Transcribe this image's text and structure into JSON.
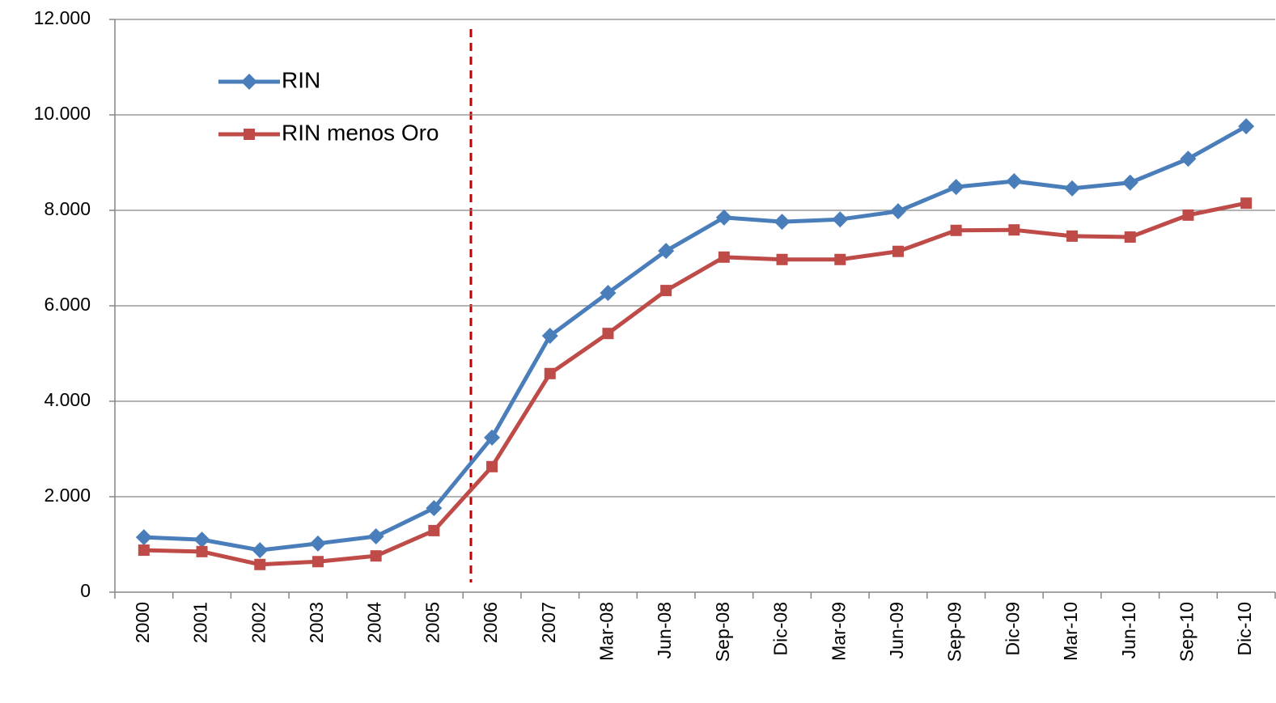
{
  "chart_data": {
    "type": "line",
    "categories": [
      "2000",
      "2001",
      "2002",
      "2003",
      "2004",
      "2005",
      "2006",
      "2007",
      "Mar-08",
      "Jun-08",
      "Sep-08",
      "Dic-08",
      "Mar-09",
      "Jun-09",
      "Sep-09",
      "Dic-09",
      "Mar-10",
      "Jun-10",
      "Sep-10",
      "Dic-10"
    ],
    "series": [
      {
        "name": "RIN",
        "color": "#4a7ebb",
        "marker": "diamond",
        "values": [
          1150,
          1100,
          880,
          1020,
          1170,
          1760,
          3240,
          5370,
          6270,
          7150,
          7850,
          7760,
          7810,
          7980,
          8490,
          8610,
          8460,
          8580,
          9080,
          9760
        ]
      },
      {
        "name": "RIN menos Oro",
        "color": "#be4b48",
        "marker": "square",
        "values": [
          880,
          850,
          580,
          640,
          760,
          1290,
          2630,
          4580,
          5420,
          6320,
          7020,
          6970,
          6970,
          7140,
          7580,
          7590,
          7460,
          7440,
          7900,
          8150
        ]
      }
    ],
    "ylim": [
      0,
      12000
    ],
    "yticks": [
      0,
      {
        "value": 2000,
        "label": "2.000"
      },
      {
        "value": 4000,
        "label": "4.000"
      },
      {
        "value": 6000,
        "label": "6.000"
      },
      {
        "value": 8000,
        "label": "8.000"
      },
      {
        "value": 10000,
        "label": "10.000"
      },
      {
        "value": 12000,
        "label": "12.000"
      }
    ],
    "grid": true,
    "legend": "top-left"
  }
}
